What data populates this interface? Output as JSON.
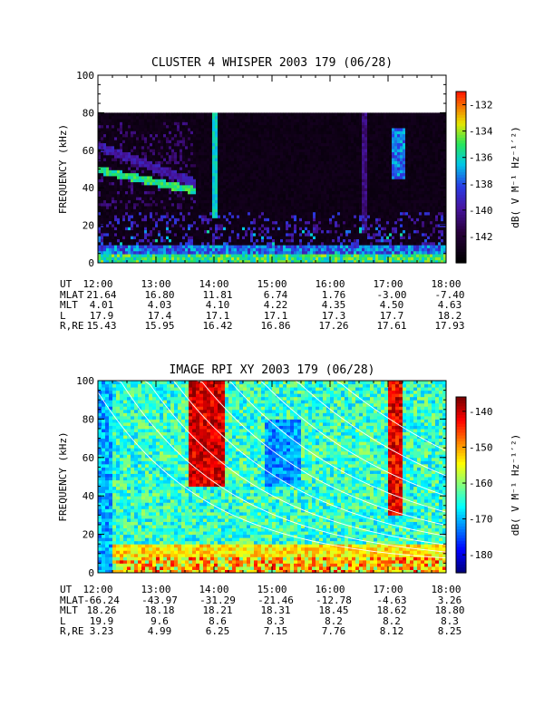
{
  "chart_data": [
    {
      "type": "heatmap",
      "title": "CLUSTER 4 WHISPER 2003 179 (06/28)",
      "ylabel": "FREQUENCY (kHz)",
      "ylim": [
        0,
        100
      ],
      "yticks": [
        "0",
        "20",
        "40",
        "60",
        "80",
        "100"
      ],
      "x": [
        "12:00",
        "13:00",
        "14:00",
        "15:00",
        "16:00",
        "17:00",
        "18:00"
      ],
      "data_max_frequency_khz": 80,
      "colorbar": {
        "label": "dB( V M⁻¹ Hz⁻¹′²)",
        "ticks": [
          "-132",
          "-134",
          "-136",
          "-138",
          "-140",
          "-142"
        ],
        "range": [
          -144,
          -131
        ]
      },
      "ephemeris": {
        "rows": [
          {
            "label": "UT",
            "values": [
              "12:00",
              "13:00",
              "14:00",
              "15:00",
              "16:00",
              "17:00",
              "18:00"
            ]
          },
          {
            "label": "MLAT",
            "values": [
              "21.64",
              "16.80",
              "11.81",
              "6.74",
              "1.76",
              "-3.00",
              "-7.40"
            ]
          },
          {
            "label": "MLT",
            "values": [
              "4.01",
              "4.03",
              "4.10",
              "4.22",
              "4.35",
              "4.50",
              "4.63"
            ]
          },
          {
            "label": "L",
            "values": [
              "17.9",
              "17.4",
              "17.1",
              "17.1",
              "17.3",
              "17.7",
              "18.2"
            ]
          },
          {
            "label": "R,RE",
            "values": [
              "15.43",
              "15.95",
              "16.42",
              "16.86",
              "17.26",
              "17.61",
              "17.93"
            ]
          }
        ]
      }
    },
    {
      "type": "heatmap",
      "title": "IMAGE RPI XY 2003 179 (06/28)",
      "ylabel": "FREQUENCY (kHz)",
      "ylim": [
        0,
        100
      ],
      "yticks": [
        "0",
        "20",
        "40",
        "60",
        "80",
        "100"
      ],
      "x": [
        "12:00",
        "13:00",
        "14:00",
        "15:00",
        "16:00",
        "17:00",
        "18:00"
      ],
      "colorbar": {
        "label": "dB( V M⁻¹ Hz⁻¹′²)",
        "ticks": [
          "-140",
          "-150",
          "-160",
          "-170",
          "-180"
        ],
        "range": [
          -185,
          -136
        ]
      },
      "ephemeris": {
        "rows": [
          {
            "label": "UT",
            "values": [
              "12:00",
              "13:00",
              "14:00",
              "15:00",
              "16:00",
              "17:00",
              "18:00"
            ]
          },
          {
            "label": "MLAT",
            "values": [
              "-66.24",
              "-43.97",
              "-31.29",
              "-21.46",
              "-12.78",
              "-4.63",
              "3.26"
            ]
          },
          {
            "label": "MLT",
            "values": [
              "18.26",
              "18.18",
              "18.21",
              "18.31",
              "18.45",
              "18.62",
              "18.80"
            ]
          },
          {
            "label": "L",
            "values": [
              "19.9",
              "9.6",
              "8.6",
              "8.3",
              "8.2",
              "8.2",
              "8.3"
            ]
          },
          {
            "label": "R,RE",
            "values": [
              "3.23",
              "4.99",
              "6.25",
              "7.15",
              "7.76",
              "8.12",
              "8.25"
            ]
          }
        ]
      }
    }
  ]
}
